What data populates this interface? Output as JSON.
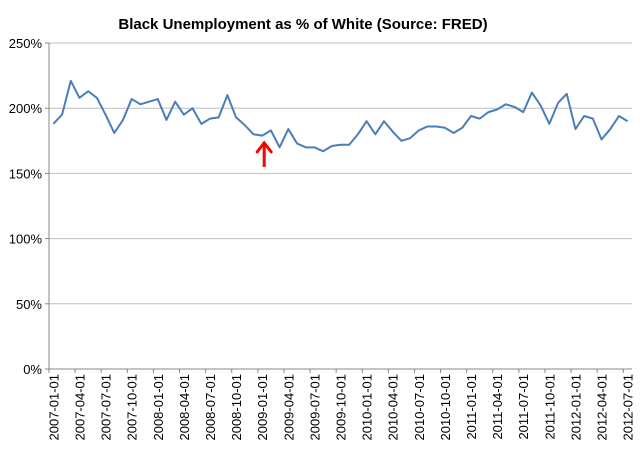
{
  "chart_data": {
    "type": "line",
    "title": "Black Unemployment as % of White (Source: FRED)",
    "xlabel": "",
    "ylabel": "",
    "ylim": [
      0,
      250
    ],
    "yticks": [
      0,
      50,
      100,
      150,
      200,
      250
    ],
    "ytick_labels": [
      "0%",
      "50%",
      "100%",
      "150%",
      "200%",
      "250%"
    ],
    "grid": true,
    "legend": "none",
    "x_tick_labels": [
      "2007-01-01",
      "2007-04-01",
      "2007-07-01",
      "2007-10-01",
      "2008-01-01",
      "2008-04-01",
      "2008-07-01",
      "2008-10-01",
      "2009-01-01",
      "2009-04-01",
      "2009-07-01",
      "2009-10-01",
      "2010-01-01",
      "2010-04-01",
      "2010-07-01",
      "2010-10-01",
      "2011-01-01",
      "2011-04-01",
      "2011-07-01",
      "2011-10-01",
      "2012-01-01",
      "2012-04-01",
      "2012-07-01"
    ],
    "series": [
      {
        "color": "#4a7ebb",
        "x": [
          "2007-01-01",
          "2007-02-01",
          "2007-03-01",
          "2007-04-01",
          "2007-05-01",
          "2007-06-01",
          "2007-07-01",
          "2007-08-01",
          "2007-09-01",
          "2007-10-01",
          "2007-11-01",
          "2007-12-01",
          "2008-01-01",
          "2008-02-01",
          "2008-03-01",
          "2008-04-01",
          "2008-05-01",
          "2008-06-01",
          "2008-07-01",
          "2008-08-01",
          "2008-09-01",
          "2008-10-01",
          "2008-11-01",
          "2008-12-01",
          "2009-01-01",
          "2009-02-01",
          "2009-03-01",
          "2009-04-01",
          "2009-05-01",
          "2009-06-01",
          "2009-07-01",
          "2009-08-01",
          "2009-09-01",
          "2009-10-01",
          "2009-11-01",
          "2009-12-01",
          "2010-01-01",
          "2010-02-01",
          "2010-03-01",
          "2010-04-01",
          "2010-05-01",
          "2010-06-01",
          "2010-07-01",
          "2010-08-01",
          "2010-09-01",
          "2010-10-01",
          "2010-11-01",
          "2010-12-01",
          "2011-01-01",
          "2011-02-01",
          "2011-03-01",
          "2011-04-01",
          "2011-05-01",
          "2011-06-01",
          "2011-07-01",
          "2011-08-01",
          "2011-09-01",
          "2011-10-01",
          "2011-11-01",
          "2011-12-01",
          "2012-01-01",
          "2012-02-01",
          "2012-03-01",
          "2012-04-01",
          "2012-05-01",
          "2012-06-01",
          "2012-07-01"
        ],
        "values": [
          188,
          195,
          221,
          208,
          213,
          208,
          195,
          181,
          191,
          207,
          203,
          205,
          207,
          191,
          205,
          195,
          200,
          188,
          192,
          193,
          210,
          193,
          187,
          180,
          179,
          183,
          170,
          184,
          173,
          170,
          170,
          167,
          171,
          172,
          172,
          180,
          190,
          180,
          190,
          182,
          175,
          177,
          183,
          186,
          186,
          185,
          181,
          185,
          194,
          192,
          197,
          199,
          203,
          201,
          197,
          212,
          202,
          188,
          204,
          211,
          184,
          194,
          192,
          176,
          184,
          194,
          190
        ]
      }
    ],
    "annotations": [
      {
        "type": "arrow",
        "color": "#ff0000",
        "x": "2009-01-01",
        "y": 178,
        "direction": "up"
      }
    ]
  }
}
